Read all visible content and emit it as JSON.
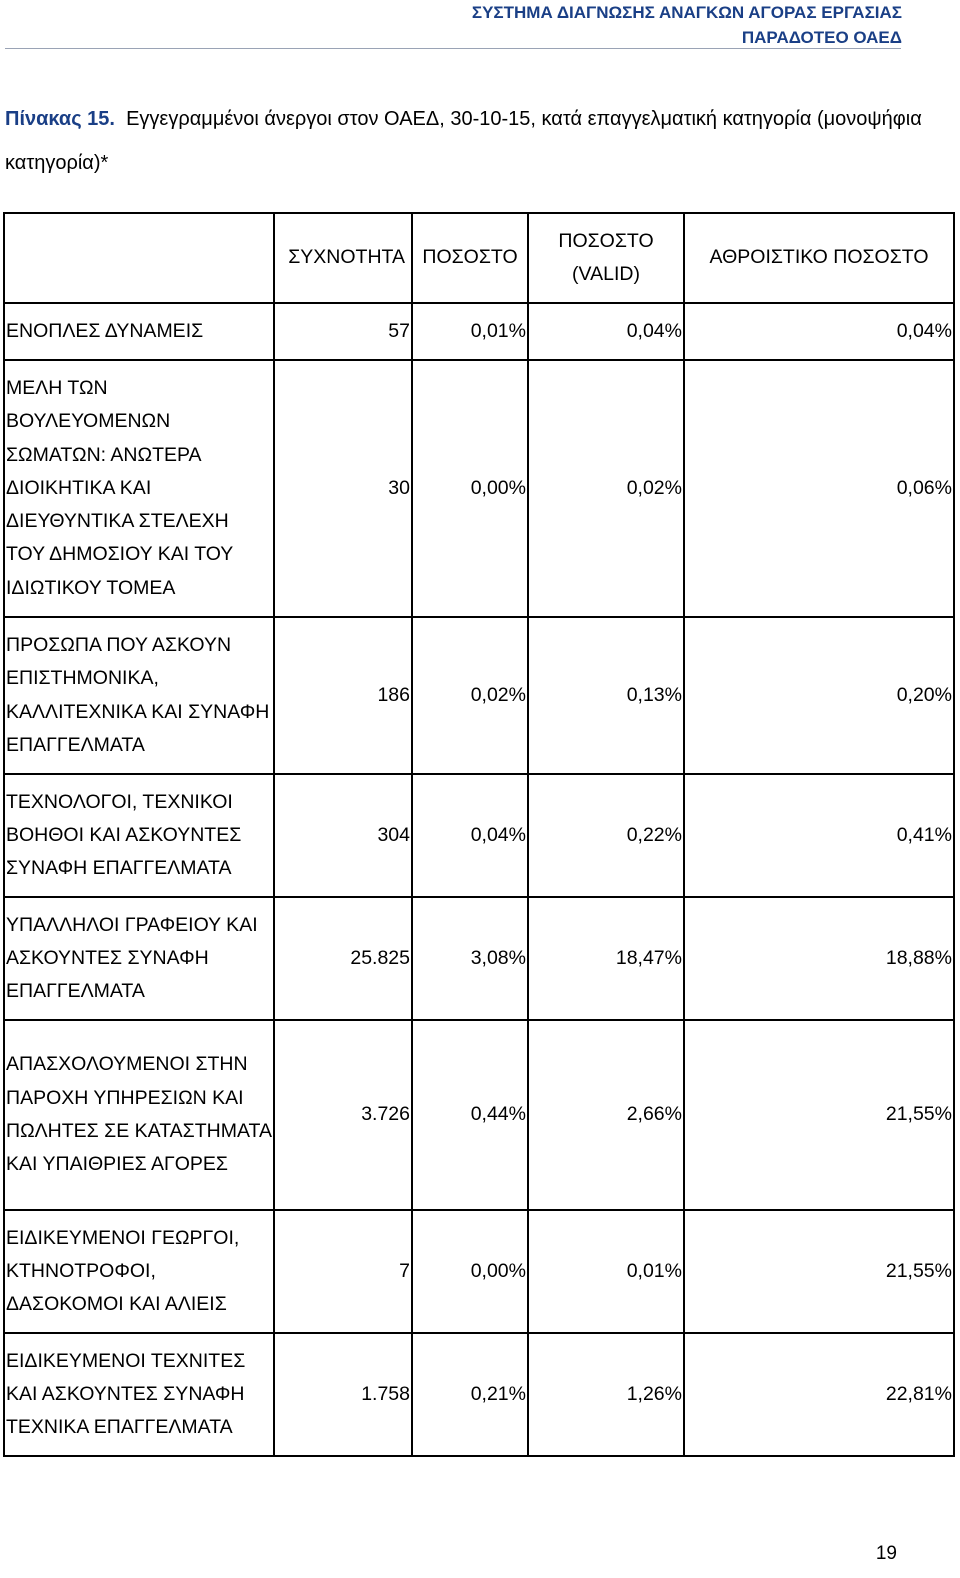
{
  "header": {
    "line1": "ΣΥΣΤΗΜΑ ΔΙΑΓΝΩΣΗΣ ΑΝΑΓΚΩΝ ΑΓΟΡΑΣ ΕΡΓΑΣΙΑΣ",
    "line2": "ΠΑΡΑΔΟΤΕΟ ΟΑΕΔ"
  },
  "caption": {
    "label": "Πίνακας 15.",
    "text": "Εγγεγραμμένοι άνεργοι στον ΟΑΕΔ, 30-10-15, κατά επαγγελματική κατηγορία (μονοψήφια κατηγορία)*"
  },
  "table": {
    "columns": {
      "category": "",
      "frequency": "ΣΥΧΝΟΤΗΤΑ",
      "percent": "ΠΟΣΟΣΤΟ",
      "valid_percent": "ΠΟΣΟΣΤΟ (VALID)",
      "cumulative_percent": "ΑΘΡΟΙΣΤΙΚΟ ΠΟΣΟΣΤΟ"
    },
    "rows": [
      {
        "category": "ΕΝΟΠΛΕΣ ΔΥΝΑΜΕΙΣ",
        "frequency": "57",
        "percent": "0,01%",
        "valid_percent": "0,04%",
        "cumulative_percent": "0,04%"
      },
      {
        "category": "ΜΕΛΗ ΤΩΝ ΒΟΥΛΕΥΟΜΕΝΩΝ ΣΩΜΑΤΩΝ: ΑΝΩΤΕΡΑ ΔΙΟΙΚΗΤΙΚΑ ΚΑΙ ΔΙΕΥΘΥΝΤΙΚΑ ΣΤΕΛΕΧΗ ΤΟΥ ΔΗΜΟΣΙΟΥ ΚΑΙ ΤΟΥ ΙΔΙΩΤΙΚΟΥ ΤΟΜΕΑ",
        "frequency": "30",
        "percent": "0,00%",
        "valid_percent": "0,02%",
        "cumulative_percent": "0,06%"
      },
      {
        "category": "ΠΡΟΣΩΠΑ ΠΟΥ ΑΣΚΟΥΝ ΕΠΙΣΤΗΜΟΝΙΚΑ, ΚΑΛΛΙΤΕΧΝΙΚΑ ΚΑΙ ΣΥΝΑΦΗ ΕΠΑΓΓΕΛΜΑΤΑ",
        "frequency": "186",
        "percent": "0,02%",
        "valid_percent": "0,13%",
        "cumulative_percent": "0,20%"
      },
      {
        "category": "ΤΕΧΝΟΛΟΓΟΙ, ΤΕΧΝΙΚΟΙ ΒΟΗΘΟΙ ΚΑΙ ΑΣΚΟΥΝΤΕΣ ΣΥΝΑΦΗ ΕΠΑΓΓΕΛΜΑΤΑ",
        "frequency": "304",
        "percent": "0,04%",
        "valid_percent": "0,22%",
        "cumulative_percent": "0,41%"
      },
      {
        "category": "ΥΠΑΛΛΗΛΟΙ ΓΡΑΦΕΙΟΥ ΚΑΙ ΑΣΚΟΥΝΤΕΣ ΣΥΝΑΦΗ ΕΠΑΓΓΕΛΜΑΤΑ",
        "frequency": "25.825",
        "percent": "3,08%",
        "valid_percent": "18,47%",
        "cumulative_percent": "18,88%"
      },
      {
        "category": "ΑΠΑΣΧΟΛΟΥΜΕΝΟΙ ΣΤΗΝ ΠΑΡΟΧΗ ΥΠΗΡΕΣΙΩΝ ΚΑΙ ΠΩΛΗΤΕΣ ΣΕ ΚΑΤΑΣΤΗΜΑΤΑ ΚΑΙ ΥΠΑΙΘΡΙΕΣ ΑΓΟΡΕΣ",
        "frequency": "3.726",
        "percent": "0,44%",
        "valid_percent": "2,66%",
        "cumulative_percent": "21,55%"
      },
      {
        "category": "ΕΙΔΙΚΕΥΜΕΝΟΙ ΓΕΩΡΓΟΙ, ΚΤΗΝΟΤΡΟΦΟΙ, ΔΑΣΟΚΟΜΟΙ ΚΑΙ ΑΛΙΕΙΣ",
        "frequency": "7",
        "percent": "0,00%",
        "valid_percent": "0,01%",
        "cumulative_percent": "21,55%"
      },
      {
        "category": "ΕΙΔΙΚΕΥΜΕΝΟΙ ΤΕΧΝΙΤΕΣ ΚΑΙ ΑΣΚΟΥΝΤΕΣ ΣΥΝΑΦΗ ΤΕΧΝΙΚΑ ΕΠΑΓΓΕΛΜΑΤΑ",
        "frequency": "1.758",
        "percent": "0,21%",
        "valid_percent": "1,26%",
        "cumulative_percent": "22,81%"
      }
    ]
  },
  "page_number": "19",
  "colors": {
    "header_text": "#1a3f86",
    "caption_label": "#1a3f86",
    "header_rule": "#9aa3b5",
    "table_border": "#000000"
  }
}
